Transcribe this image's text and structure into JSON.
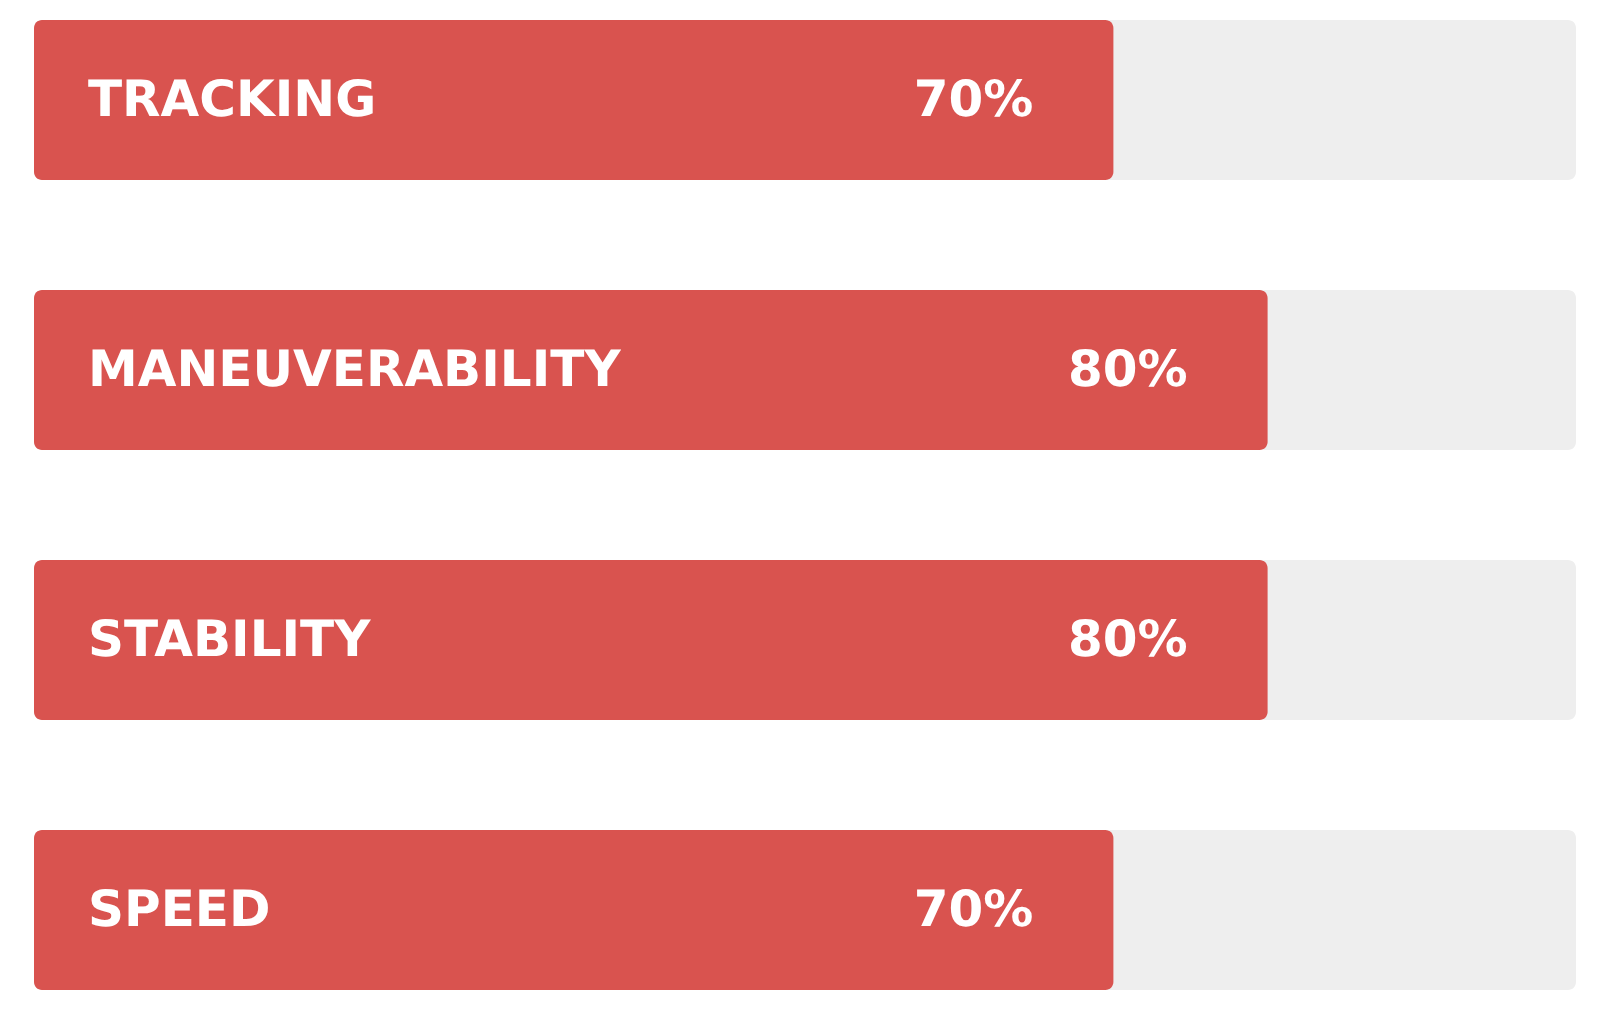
{
  "chart_data": {
    "type": "bar",
    "orientation": "horizontal",
    "categories": [
      "TRACKING",
      "MANEUVERABILITY",
      "STABILITY",
      "SPEED"
    ],
    "values": [
      70,
      80,
      80,
      70
    ],
    "value_labels": [
      "70%",
      "80%",
      "80%",
      "70%"
    ],
    "color": "#d9534f",
    "xlim": [
      0,
      100
    ],
    "tick_labels": false
  }
}
